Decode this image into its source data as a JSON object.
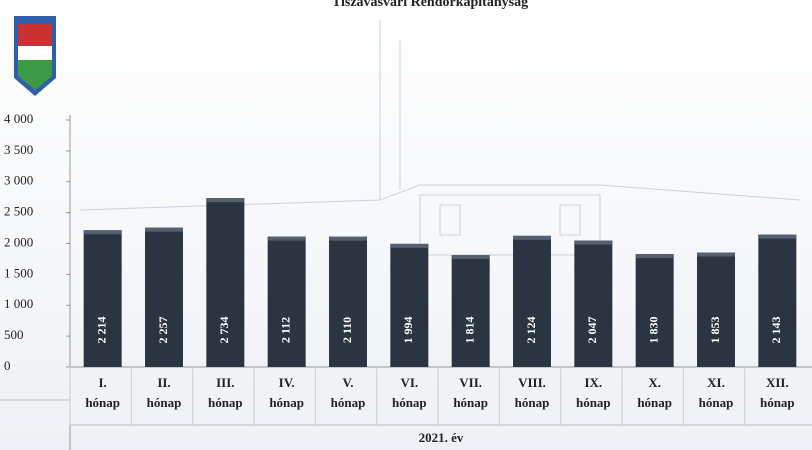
{
  "chart_data": {
    "type": "bar",
    "title": "Tiszavasvári Rendőrkapitányság",
    "categories": [
      [
        "I.",
        "hónap"
      ],
      [
        "II.",
        "hónap"
      ],
      [
        "III.",
        "hónap"
      ],
      [
        "IV.",
        "hónap"
      ],
      [
        "V.",
        "hónap"
      ],
      [
        "VI.",
        "hónap"
      ],
      [
        "VII.",
        "hónap"
      ],
      [
        "VIII.",
        "hónap"
      ],
      [
        "IX.",
        "hónap"
      ],
      [
        "X.",
        "hónap"
      ],
      [
        "XI.",
        "hónap"
      ],
      [
        "XII.",
        "hónap"
      ]
    ],
    "values": [
      2214,
      2257,
      2734,
      2112,
      2110,
      1994,
      1814,
      2124,
      2047,
      1830,
      1853,
      2143
    ],
    "value_labels": [
      "2 214",
      "2 257",
      "2 734",
      "2 112",
      "2 110",
      "1 994",
      "1 814",
      "2 124",
      "2 047",
      "1 830",
      "1 853",
      "2 143"
    ],
    "color": "#2b3441",
    "x_label": "2021. év",
    "ylim": [
      0,
      4000
    ],
    "yticks": [
      0,
      {
        "value": 500,
        "label": "500"
      },
      {
        "value": 1000,
        "label": "1 000"
      },
      {
        "value": 1500,
        "label": "1 500"
      },
      {
        "value": 2000,
        "label": "2 000"
      },
      {
        "value": 2500,
        "label": "2 500"
      },
      {
        "value": 3000,
        "label": "3 000"
      },
      {
        "value": 3500,
        "label": "3 500"
      },
      {
        "value": 4000,
        "label": "4 000"
      }
    ]
  }
}
